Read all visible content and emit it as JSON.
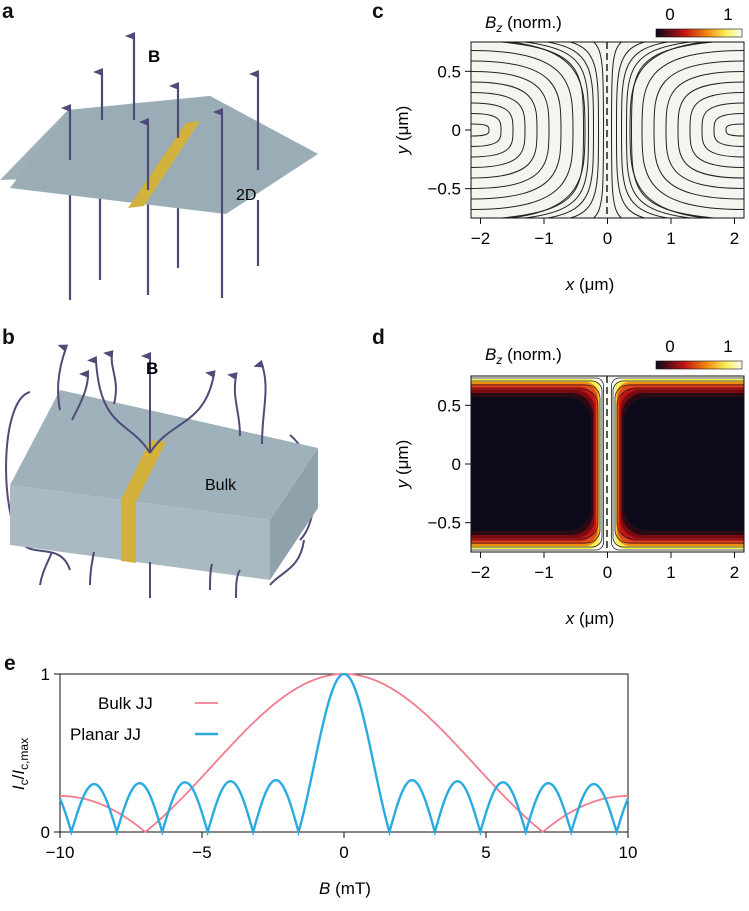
{
  "panel_labels": {
    "a": "a",
    "b": "b",
    "c": "c",
    "d": "d",
    "e": "e"
  },
  "panel_a": {
    "field_label": "B",
    "surface_label": "2D"
  },
  "panel_b": {
    "field_label": "B",
    "surface_label": "Bulk"
  },
  "colors": {
    "field_line": "#4f4a78",
    "plate_top": "#9aacb5",
    "plate_side": "#a8b8c1",
    "junction": "#d2b23c",
    "bulk_curve": "#f27b8e",
    "planar_curve": "#29abe2"
  },
  "panel_c": {
    "title_main": "B",
    "title_sub": "z",
    "title_rest": " (norm.)",
    "colorbar_min": "0",
    "colorbar_max": "1",
    "x_ticks": [
      "−2",
      "−1",
      "0",
      "1",
      "2"
    ],
    "y_ticks": [
      "0.5",
      "0",
      "−0.5"
    ],
    "xlabel_var": "x",
    "xlabel_unit": " (μm)",
    "ylabel_var": "y",
    "ylabel_unit": " (μm)"
  },
  "panel_d": {
    "title_main": "B",
    "title_sub": "z",
    "title_rest": " (norm.)",
    "colorbar_min": "0",
    "colorbar_max": "1",
    "x_ticks": [
      "−2",
      "−1",
      "0",
      "1",
      "2"
    ],
    "y_ticks": [
      "0.5",
      "0",
      "−0.5"
    ],
    "xlabel_var": "x",
    "xlabel_unit": " (μm)",
    "ylabel_var": "y",
    "ylabel_unit": " (μm)"
  },
  "chart_data": {
    "type": "line",
    "title": "",
    "xlabel": "B (mT)",
    "ylabel": "Ic/Ic,max",
    "xlim": [
      -10,
      10
    ],
    "ylim": [
      0,
      1
    ],
    "x_ticks": [
      "−10",
      "−5",
      "0",
      "5",
      "10"
    ],
    "y_ticks": [
      "0",
      "1"
    ],
    "legend": "top-left",
    "series": [
      {
        "name": "Bulk JJ",
        "model": "abs(sinc(B / 7.0))",
        "zeros": [
          -7,
          7
        ],
        "peak": 1.0,
        "value_at_10": 0.22
      },
      {
        "name": "Planar JJ",
        "model": "abs(sinc(B / 1.6)) with lobe maxima 0.32-0.36",
        "first_zeros": [
          -1.6,
          1.6
        ],
        "lobe_peak": 0.34,
        "peak": 1.0
      }
    ]
  },
  "panel_e": {
    "legend_bulk": "Bulk JJ",
    "legend_planar": "Planar JJ",
    "ylabel_I": "I",
    "ylabel_c": "c",
    "ylabel_slash": "/",
    "ylabel_I2": "I",
    "ylabel_cmax": "c,max",
    "xlabel_var": "B",
    "xlabel_unit": " (mT)"
  }
}
